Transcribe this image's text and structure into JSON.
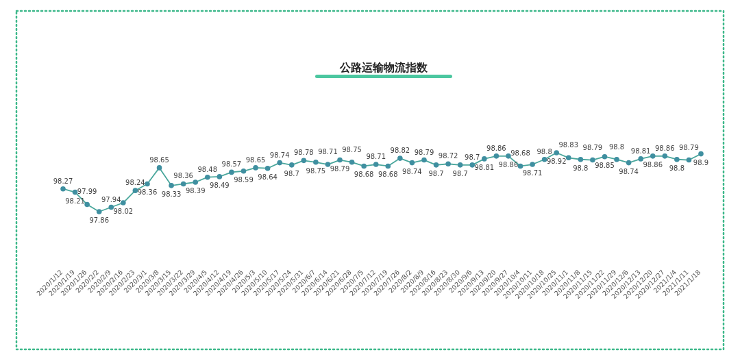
{
  "chart_data": {
    "type": "line",
    "title": "公路运输物流指数",
    "categories": [
      "2020/1/12",
      "2020/1/19",
      "2020/1/26",
      "2020/2/2",
      "2020/2/9",
      "2020/2/16",
      "2020/2/23",
      "2020/3/1",
      "2020/3/8",
      "2020/3/15",
      "2020/3/22",
      "2020/3/29",
      "2020/4/5",
      "2020/4/12",
      "2020/4/19",
      "2020/4/26",
      "2020/5/3",
      "2020/5/10",
      "2020/5/17",
      "2020/5/24",
      "2020/5/31",
      "2020/6/7",
      "2020/6/14",
      "2020/6/21",
      "2020/6/28",
      "2020/7/5",
      "2020/7/12",
      "2020/7/19",
      "2020/7/26",
      "2020/8/2",
      "2020/8/9",
      "2020/8/16",
      "2020/8/23",
      "2020/8/30",
      "2020/9/6",
      "2020/9/13",
      "2020/9/20",
      "2020/9/27",
      "2020/10/4",
      "2020/10/11",
      "2020/10/18",
      "2020/10/25",
      "2020/11/1",
      "2020/11/8",
      "2020/11/15",
      "2020/11/22",
      "2020/11/29",
      "2020/12/6",
      "2020/12/13",
      "2020/12/20",
      "2020/12/27",
      "2021/1/4",
      "2021/1/11",
      "2021/1/18"
    ],
    "series": [
      {
        "color": "#3f8fa0",
        "values": [
          98.27,
          98.21,
          97.99,
          97.86,
          97.94,
          98.02,
          98.24,
          98.36,
          98.65,
          98.33,
          98.36,
          98.39,
          98.48,
          98.49,
          98.57,
          98.59,
          98.65,
          98.64,
          98.74,
          98.7,
          98.78,
          98.75,
          98.71,
          98.79,
          98.75,
          98.68,
          98.71,
          98.68,
          98.82,
          98.74,
          98.79,
          98.7,
          98.72,
          98.7,
          98.7,
          98.81,
          98.86,
          98.86,
          98.68,
          98.71,
          98.8,
          98.92,
          98.83,
          98.8,
          98.79,
          98.85,
          98.8,
          98.74,
          98.81,
          98.86,
          98.86,
          98.8,
          98.79,
          98.9
        ]
      }
    ],
    "marker": "circle",
    "data_labels": true
  }
}
